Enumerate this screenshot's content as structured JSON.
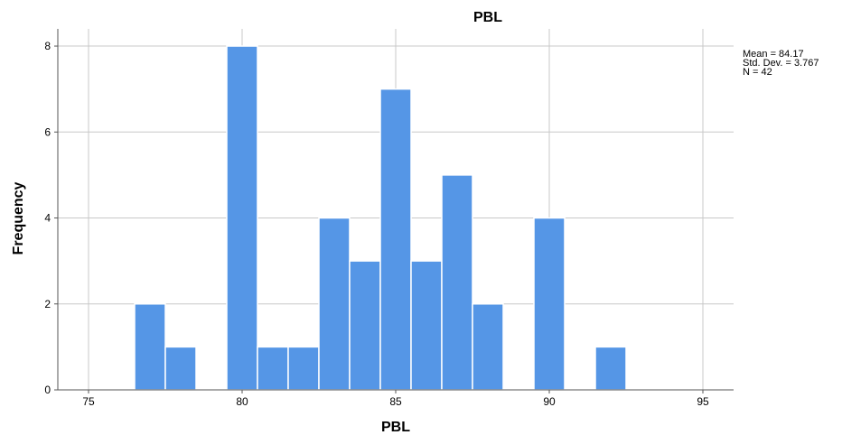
{
  "chart_data": {
    "type": "bar",
    "title": "PBL",
    "xlabel": "PBL",
    "ylabel": "Frequency",
    "xlim": [
      74,
      96
    ],
    "ylim": [
      0,
      8.4
    ],
    "x_ticks": [
      75,
      80,
      85,
      90,
      95
    ],
    "y_ticks": [
      0,
      2,
      4,
      6,
      8
    ],
    "grid": true,
    "bar_color": "#5596e6",
    "bins": [
      {
        "start": 76.5,
        "end": 77.5,
        "frequency": 2
      },
      {
        "start": 77.5,
        "end": 78.5,
        "frequency": 1
      },
      {
        "start": 79.5,
        "end": 80.5,
        "frequency": 8
      },
      {
        "start": 80.5,
        "end": 81.5,
        "frequency": 1
      },
      {
        "start": 81.5,
        "end": 82.5,
        "frequency": 1
      },
      {
        "start": 82.5,
        "end": 83.5,
        "frequency": 4
      },
      {
        "start": 83.5,
        "end": 84.5,
        "frequency": 3
      },
      {
        "start": 84.5,
        "end": 85.5,
        "frequency": 7
      },
      {
        "start": 85.5,
        "end": 86.5,
        "frequency": 3
      },
      {
        "start": 86.5,
        "end": 87.5,
        "frequency": 5
      },
      {
        "start": 87.5,
        "end": 88.5,
        "frequency": 2
      },
      {
        "start": 89.5,
        "end": 90.5,
        "frequency": 4
      },
      {
        "start": 91.5,
        "end": 92.5,
        "frequency": 1
      }
    ],
    "stats": {
      "legend_position": "top-right",
      "lines": [
        "Mean = 84.17",
        "Std. Dev. = 3.767",
        "N = 42"
      ]
    }
  }
}
